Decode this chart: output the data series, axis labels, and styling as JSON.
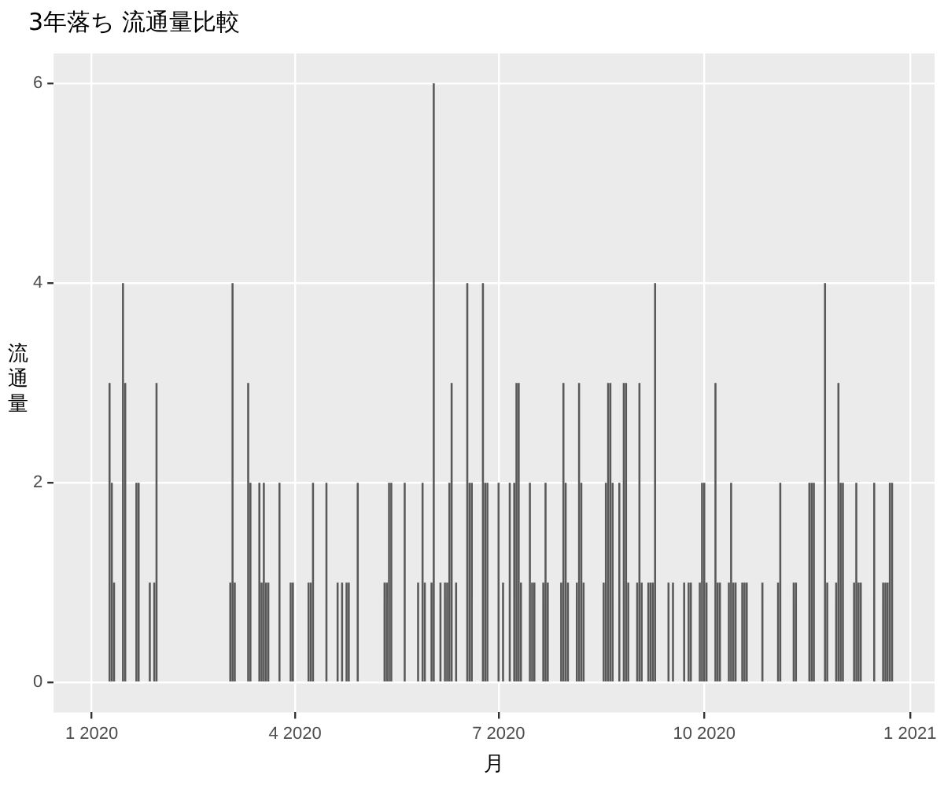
{
  "chart_data": {
    "type": "bar",
    "title": "3年落ち 流通量比較",
    "xlabel": "月",
    "ylabel": "流通量",
    "color": "#595959",
    "grid": true,
    "xlim": [
      "2019-12-15",
      "2021-01-12"
    ],
    "xticks": [
      {
        "value": "2020-01-01",
        "label": "1 2020"
      },
      {
        "value": "2020-04-01",
        "label": "4 2020"
      },
      {
        "value": "2020-07-01",
        "label": "7 2020"
      },
      {
        "value": "2020-10-01",
        "label": "10 2020"
      },
      {
        "value": "2021-01-01",
        "label": "1 2021"
      }
    ],
    "ylim": [
      -0.3,
      6.3
    ],
    "yticks": [
      0,
      2,
      4,
      6
    ],
    "x": [
      "2020-01-09",
      "2020-01-10",
      "2020-01-11",
      "2020-01-15",
      "2020-01-16",
      "2020-01-21",
      "2020-01-22",
      "2020-01-27",
      "2020-01-29",
      "2020-01-30",
      "2020-03-03",
      "2020-03-04",
      "2020-03-05",
      "2020-03-11",
      "2020-03-12",
      "2020-03-16",
      "2020-03-17",
      "2020-03-18",
      "2020-03-19",
      "2020-03-20",
      "2020-03-25",
      "2020-03-30",
      "2020-03-31",
      "2020-04-07",
      "2020-04-08",
      "2020-04-09",
      "2020-04-15",
      "2020-04-20",
      "2020-04-22",
      "2020-04-24",
      "2020-04-25",
      "2020-04-29",
      "2020-05-11",
      "2020-05-12",
      "2020-05-13",
      "2020-05-14",
      "2020-05-20",
      "2020-05-26",
      "2020-05-28",
      "2020-05-29",
      "2020-06-01",
      "2020-06-02",
      "2020-06-05",
      "2020-06-07",
      "2020-06-08",
      "2020-06-09",
      "2020-06-10",
      "2020-06-12",
      "2020-06-17",
      "2020-06-18",
      "2020-06-19",
      "2020-06-24",
      "2020-06-25",
      "2020-06-26",
      "2020-07-01",
      "2020-07-03",
      "2020-07-06",
      "2020-07-08",
      "2020-07-09",
      "2020-07-10",
      "2020-07-11",
      "2020-07-15",
      "2020-07-16",
      "2020-07-17",
      "2020-07-21",
      "2020-07-22",
      "2020-07-23",
      "2020-07-29",
      "2020-07-30",
      "2020-07-31",
      "2020-08-01",
      "2020-08-05",
      "2020-08-06",
      "2020-08-07",
      "2020-08-08",
      "2020-08-17",
      "2020-08-18",
      "2020-08-19",
      "2020-08-20",
      "2020-08-21",
      "2020-08-24",
      "2020-08-26",
      "2020-08-27",
      "2020-08-28",
      "2020-09-01",
      "2020-09-02",
      "2020-09-03",
      "2020-09-06",
      "2020-09-07",
      "2020-09-08",
      "2020-09-09",
      "2020-09-15",
      "2020-09-17",
      "2020-09-22",
      "2020-09-24",
      "2020-09-25",
      "2020-09-29",
      "2020-09-30",
      "2020-10-01",
      "2020-10-02",
      "2020-10-06",
      "2020-10-07",
      "2020-10-08",
      "2020-10-12",
      "2020-10-13",
      "2020-10-14",
      "2020-10-15",
      "2020-10-18",
      "2020-10-19",
      "2020-10-20",
      "2020-10-27",
      "2020-11-03",
      "2020-11-04",
      "2020-11-10",
      "2020-11-11",
      "2020-11-17",
      "2020-11-18",
      "2020-11-19",
      "2020-11-24",
      "2020-11-25",
      "2020-11-29",
      "2020-11-30",
      "2020-12-01",
      "2020-12-02",
      "2020-12-07",
      "2020-12-08",
      "2020-12-09",
      "2020-12-10",
      "2020-12-16",
      "2020-12-20",
      "2020-12-21",
      "2020-12-22",
      "2020-12-23",
      "2020-12-24"
    ],
    "values": [
      3,
      2,
      1,
      4,
      3,
      2,
      2,
      1,
      1,
      3,
      1,
      4,
      1,
      3,
      2,
      2,
      1,
      2,
      1,
      1,
      2,
      1,
      1,
      1,
      1,
      2,
      2,
      1,
      1,
      1,
      1,
      2,
      1,
      1,
      2,
      2,
      2,
      1,
      2,
      1,
      1,
      6,
      1,
      1,
      1,
      2,
      3,
      1,
      4,
      2,
      2,
      4,
      2,
      2,
      2,
      1,
      2,
      2,
      3,
      3,
      1,
      2,
      1,
      1,
      1,
      2,
      1,
      1,
      3,
      2,
      1,
      1,
      3,
      2,
      1,
      1,
      2,
      3,
      3,
      2,
      2,
      3,
      3,
      1,
      1,
      3,
      1,
      1,
      1,
      1,
      4,
      1,
      1,
      1,
      1,
      1,
      1,
      2,
      2,
      1,
      3,
      1,
      1,
      1,
      2,
      1,
      1,
      1,
      1,
      1,
      1,
      1,
      2,
      1,
      1,
      2,
      2,
      2,
      4,
      1,
      1,
      3,
      2,
      2,
      1,
      2,
      1,
      1,
      2,
      1,
      1,
      1,
      2,
      2
    ]
  }
}
